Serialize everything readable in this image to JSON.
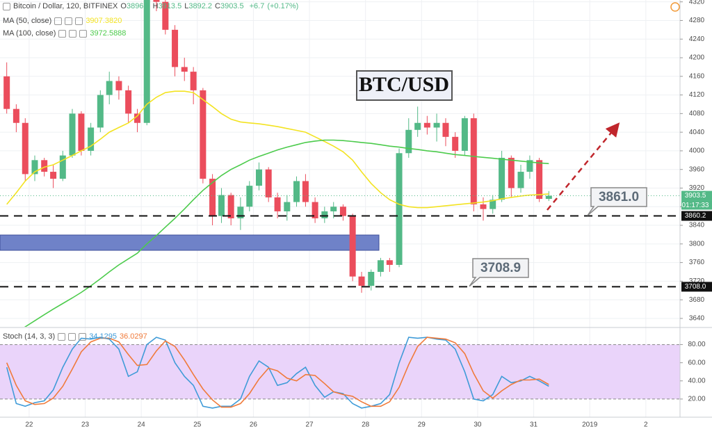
{
  "header": {
    "symbol": "Bitcoin / Dollar, 120, BITFINEX",
    "ohlc": [
      {
        "key": "O",
        "value": 3896.8
      },
      {
        "key": "H",
        "value": 3913.5
      },
      {
        "key": "L",
        "value": 3892.2
      },
      {
        "key": "C",
        "value": 3903.5
      }
    ],
    "change": {
      "value": 6.7,
      "label": "+6.7"
    },
    "change_pct": {
      "value": 0.17,
      "label": "(+0.17%)"
    },
    "countdown": "01:17:33"
  },
  "chart_data": [
    {
      "type": "candlestick",
      "title": "BTC/USD",
      "up_color": "#53b987",
      "down_color": "#eb4d5c",
      "x": [
        21.6,
        21.77,
        21.93,
        22.1,
        22.27,
        22.43,
        22.6,
        22.77,
        22.93,
        23.1,
        23.27,
        23.43,
        23.6,
        23.77,
        23.93,
        24.1,
        24.27,
        24.43,
        24.6,
        24.77,
        24.93,
        25.1,
        25.27,
        25.43,
        25.6,
        25.77,
        25.93,
        26.1,
        26.27,
        26.43,
        26.6,
        26.77,
        26.93,
        27.1,
        27.27,
        27.43,
        27.6,
        27.77,
        27.93,
        28.1,
        28.27,
        28.43,
        28.6,
        28.77,
        28.93,
        29.1,
        29.27,
        29.43,
        29.6,
        29.77,
        29.93,
        30.1,
        30.27,
        30.43,
        30.6,
        30.77,
        30.93,
        31.1,
        31.27
      ],
      "open": [
        4160,
        4090,
        4060,
        3950,
        3980,
        3955,
        3940,
        3990,
        4080,
        4000,
        4050,
        4120,
        4150,
        4130,
        4080,
        4060,
        4340,
        4320,
        4260,
        4180,
        4170,
        4130,
        3940,
        3860,
        3905,
        3855,
        3880,
        3925,
        3960,
        3900,
        3870,
        3890,
        3935,
        3890,
        3855,
        3870,
        3880,
        3860,
        3730,
        3710,
        3740,
        3765,
        3755,
        3995,
        4045,
        4060,
        4050,
        4060,
        4030,
        4000,
        4070,
        3885,
        3875,
        3895,
        3985,
        3920,
        3955,
        3980,
        3896.8
      ],
      "high": [
        4190,
        4100,
        4070,
        3990,
        3985,
        3970,
        4000,
        4090,
        4085,
        4060,
        4130,
        4170,
        4160,
        4140,
        4090,
        4360,
        4360,
        4330,
        4270,
        4200,
        4180,
        4135,
        3950,
        3920,
        3910,
        3900,
        3935,
        3975,
        3965,
        3910,
        3905,
        3945,
        3950,
        3900,
        3880,
        3890,
        3885,
        3865,
        3740,
        3745,
        3770,
        3770,
        4005,
        4070,
        4095,
        4075,
        4080,
        4070,
        4040,
        4075,
        4080,
        3900,
        3905,
        4000,
        3990,
        3970,
        3990,
        3985,
        3913.5
      ],
      "low": [
        4080,
        4040,
        3935,
        3935,
        3945,
        3920,
        3935,
        3985,
        3990,
        3990,
        4040,
        4100,
        4110,
        4060,
        4040,
        4055,
        4300,
        4250,
        4160,
        4150,
        4100,
        3930,
        3840,
        3845,
        3840,
        3830,
        3870,
        3915,
        3890,
        3855,
        3850,
        3880,
        3880,
        3845,
        3845,
        3855,
        3850,
        3720,
        3695,
        3700,
        3730,
        3740,
        3750,
        3985,
        4030,
        4035,
        4020,
        4010,
        3985,
        3990,
        3870,
        3850,
        3865,
        3890,
        3900,
        3910,
        3940,
        3890,
        3892.2
      ],
      "close": [
        4090,
        4060,
        3950,
        3980,
        3955,
        3940,
        3990,
        4080,
        4000,
        4050,
        4120,
        4150,
        4130,
        4080,
        4060,
        4340,
        4320,
        4260,
        4180,
        4170,
        4130,
        3940,
        3860,
        3905,
        3855,
        3880,
        3925,
        3960,
        3900,
        3870,
        3890,
        3935,
        3890,
        3855,
        3870,
        3880,
        3860,
        3730,
        3710,
        3740,
        3765,
        3755,
        3995,
        4045,
        4060,
        4050,
        4060,
        4030,
        4000,
        4070,
        3885,
        3875,
        3895,
        3985,
        3920,
        3955,
        3980,
        3896.8,
        3903.5
      ],
      "series": [
        {
          "name": "MA (50, close)",
          "color": "#f3e321",
          "last": {
            "value": 3907.382,
            "label": "3907.3820"
          },
          "values": [
            3885,
            3910,
            3935,
            3955,
            3965,
            3970,
            3980,
            3990,
            4000,
            4010,
            4025,
            4040,
            4050,
            4060,
            4075,
            4100,
            4115,
            4125,
            4128,
            4128,
            4125,
            4110,
            4095,
            4080,
            4068,
            4062,
            4060,
            4058,
            4055,
            4052,
            4048,
            4044,
            4040,
            4030,
            4020,
            4010,
            3998,
            3980,
            3955,
            3930,
            3910,
            3895,
            3885,
            3880,
            3878,
            3878,
            3880,
            3882,
            3884,
            3886,
            3888,
            3890,
            3893,
            3897,
            3900,
            3903,
            3905,
            3906,
            3907.382
          ]
        },
        {
          "name": "MA (100, close)",
          "color": "#4ccb4c",
          "last": {
            "value": 3972.5888,
            "label": "3972.5888"
          },
          "values": [
            3600,
            3610,
            3622,
            3635,
            3648,
            3660,
            3672,
            3684,
            3696,
            3710,
            3725,
            3740,
            3755,
            3768,
            3780,
            3800,
            3818,
            3836,
            3855,
            3875,
            3895,
            3915,
            3932,
            3947,
            3960,
            3970,
            3980,
            3988,
            3995,
            4002,
            4008,
            4013,
            4018,
            4021,
            4023,
            4023,
            4022,
            4020,
            4018,
            4016,
            4013,
            4010,
            4008,
            4005,
            4003,
            4000,
            3998,
            3995,
            3992,
            3990,
            3988,
            3986,
            3984,
            3982,
            3980,
            3978,
            3976,
            3974,
            3972.5888
          ]
        }
      ],
      "hlines": [
        {
          "value": 3860.2,
          "label": "3860.2"
        },
        {
          "value": 3708,
          "label": "3708.0"
        }
      ],
      "callouts": [
        {
          "value": 3861,
          "label": "3861.0"
        },
        {
          "value": 3708.9,
          "label": "3708.9"
        }
      ],
      "xlim": [
        21.48,
        33.61
      ],
      "ylim": [
        3622,
        4324
      ],
      "yticks": [
        3640,
        3680,
        3720,
        3760,
        3800,
        3840,
        3880,
        3920,
        3960,
        4000,
        4040,
        4080,
        4120,
        4160,
        4200,
        4240,
        4280,
        4320
      ],
      "grid": true
    },
    {
      "type": "line",
      "title": "Stoch (14, 3, 3)",
      "band": [
        20,
        80
      ],
      "band_color": "#ead4fa",
      "series": [
        {
          "name": "%K",
          "color": "#3f9bd8",
          "last": {
            "value": 34.1295,
            "label": "34.1295"
          },
          "values": [
            55,
            15,
            12,
            16,
            18,
            30,
            55,
            75,
            87,
            86,
            88,
            86,
            75,
            45,
            50,
            80,
            88,
            85,
            60,
            45,
            35,
            12,
            10,
            12,
            12,
            20,
            45,
            62,
            55,
            35,
            38,
            48,
            55,
            35,
            22,
            28,
            26,
            15,
            10,
            12,
            15,
            25,
            60,
            88,
            87,
            88,
            86,
            85,
            75,
            50,
            20,
            18,
            25,
            45,
            38,
            40,
            45,
            40,
            34.1295
          ]
        },
        {
          "name": "%D",
          "color": "#f07a3a",
          "last": {
            "value": 36.0297,
            "label": "36.0297"
          },
          "values": [
            60,
            35,
            18,
            14,
            15,
            21,
            34,
            53,
            72,
            83,
            87,
            87,
            83,
            69,
            57,
            58,
            73,
            84,
            78,
            63,
            47,
            31,
            19,
            11,
            11,
            15,
            26,
            42,
            54,
            51,
            43,
            40,
            47,
            46,
            37,
            28,
            25,
            23,
            17,
            12,
            12,
            17,
            33,
            58,
            78,
            88,
            87,
            86,
            82,
            70,
            48,
            29,
            21,
            29,
            36,
            41,
            41,
            42,
            36.0297
          ]
        }
      ],
      "xlim": [
        21.48,
        33.61
      ],
      "ylim": [
        0,
        95
      ],
      "yticks": [
        {
          "value": 20,
          "label": "20.00"
        },
        {
          "value": 40,
          "label": "40.00"
        },
        {
          "value": 60,
          "label": "60.00"
        },
        {
          "value": 80,
          "label": "80.00"
        }
      ],
      "xticks": [
        22,
        23,
        24,
        25,
        26,
        27,
        28,
        29,
        30,
        31,
        {
          "value": 32,
          "label": "2019"
        },
        {
          "value": 33,
          "label": "2"
        }
      ]
    }
  ]
}
